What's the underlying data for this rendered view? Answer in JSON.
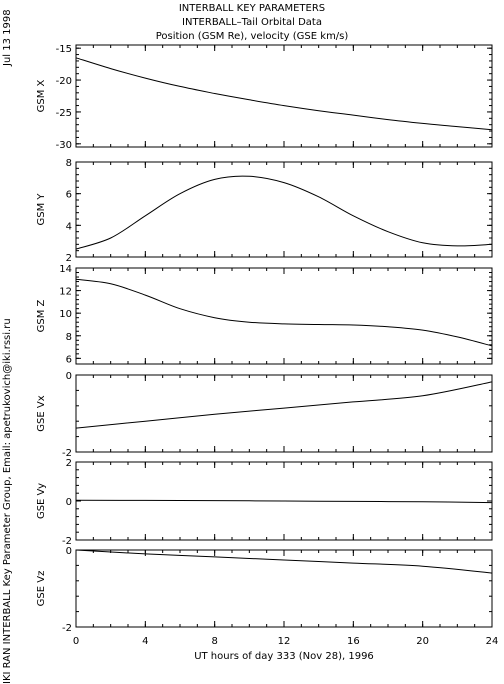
{
  "header": {
    "line1": "INTERBALL KEY PARAMETERS",
    "line2": "INTERBALL–Tail Orbital Data",
    "line3": "Position (GSM Re), velocity (GSE km/s)"
  },
  "side": {
    "date": "Jul 13 1998",
    "credit": "IKI RAN INTERBALL Key Parameter Group, Email: apetrukovich@iki.rssi.ru"
  },
  "chart_data": {
    "type": "line",
    "xlabel": "UT hours of day 333 (Nov 28), 1996",
    "xlim": [
      0,
      24
    ],
    "xticks": [
      0,
      4,
      8,
      12,
      16,
      20,
      24
    ],
    "panels": [
      {
        "name": "gsm-x",
        "ylabel": "GSM X",
        "ylim": [
          -30.5,
          -14.5
        ],
        "yticks": [
          -30,
          -25,
          -20,
          -15
        ],
        "x": [
          0,
          2,
          4,
          6,
          8,
          10,
          12,
          14,
          16,
          18,
          20,
          22,
          24
        ],
        "y": [
          -16.5,
          -18.2,
          -19.7,
          -21.0,
          -22.1,
          -23.1,
          -24.0,
          -24.8,
          -25.5,
          -26.2,
          -26.8,
          -27.3,
          -27.8
        ]
      },
      {
        "name": "gsm-y",
        "ylabel": "GSM Y",
        "ylim": [
          2,
          8
        ],
        "yticks": [
          2,
          4,
          6,
          8
        ],
        "x": [
          0,
          2,
          4,
          6,
          8,
          10,
          12,
          14,
          16,
          18,
          20,
          22,
          24
        ],
        "y": [
          2.5,
          3.2,
          4.6,
          6.0,
          6.9,
          7.1,
          6.7,
          5.8,
          4.6,
          3.6,
          2.9,
          2.7,
          2.8
        ]
      },
      {
        "name": "gsm-z",
        "ylabel": "GSM Z",
        "ylim": [
          5.5,
          14
        ],
        "yticks": [
          6,
          8,
          10,
          12,
          14
        ],
        "x": [
          0,
          2,
          4,
          6,
          8,
          10,
          12,
          14,
          16,
          18,
          20,
          22,
          24
        ],
        "y": [
          13.0,
          12.6,
          11.6,
          10.4,
          9.6,
          9.2,
          9.05,
          9.0,
          8.95,
          8.8,
          8.5,
          7.9,
          7.1
        ]
      },
      {
        "name": "gse-vx",
        "ylabel": "GSE Vx",
        "ylim": [
          -2,
          0
        ],
        "yticks": [
          -2,
          0
        ],
        "x": [
          0,
          4,
          8,
          12,
          16,
          20,
          24
        ],
        "y": [
          -1.38,
          -1.2,
          -1.02,
          -0.86,
          -0.7,
          -0.54,
          -0.18
        ]
      },
      {
        "name": "gse-vy",
        "ylabel": "GSE Vy",
        "ylim": [
          -2,
          2
        ],
        "yticks": [
          -2,
          0,
          2
        ],
        "x": [
          0,
          4,
          8,
          12,
          16,
          20,
          24
        ],
        "y": [
          0.04,
          0.03,
          0.02,
          0.0,
          -0.02,
          -0.04,
          -0.08
        ]
      },
      {
        "name": "gse-vz",
        "ylabel": "GSE Vz",
        "ylim": [
          -2,
          0
        ],
        "yticks": [
          -2,
          0
        ],
        "x": [
          0,
          4,
          8,
          12,
          16,
          20,
          24
        ],
        "y": [
          0.0,
          -0.1,
          -0.18,
          -0.26,
          -0.34,
          -0.42,
          -0.6
        ]
      }
    ]
  }
}
